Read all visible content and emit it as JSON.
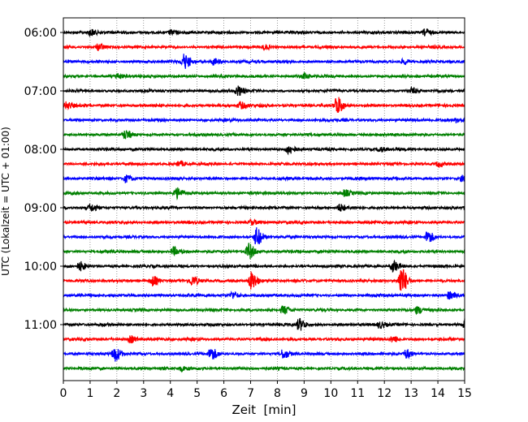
{
  "chart_data": {
    "type": "line",
    "title": "",
    "xlabel": "Zeit  [min]",
    "ylabel": "UTC (Lokalzeit = UTC + 01:00)",
    "xlim": [
      0,
      15
    ],
    "x_ticks": [
      0,
      1,
      2,
      3,
      4,
      5,
      6,
      7,
      8,
      9,
      10,
      11,
      12,
      13,
      14,
      15
    ],
    "x_tick_labels": [
      "0",
      "1",
      "2",
      "3",
      "4",
      "5",
      "6",
      "7",
      "8",
      "9",
      "10",
      "11",
      "12",
      "13",
      "14",
      "15"
    ],
    "y_tick_labels": [
      "06:00",
      "07:00",
      "08:00",
      "09:00",
      "10:00",
      "11:00"
    ],
    "y_tick_traces": [
      0,
      4,
      8,
      12,
      16,
      20
    ],
    "grid": {
      "x": true,
      "y": false,
      "style": "dotted"
    },
    "trace_minutes": 15,
    "colors": [
      "#000000",
      "#ff0000",
      "#0000ff",
      "#008000"
    ],
    "traces": [
      {
        "start": "06:00",
        "color": "#000000",
        "events": [
          [
            1.0,
            4
          ],
          [
            4.0,
            3
          ],
          [
            13.5,
            4
          ]
        ]
      },
      {
        "start": "06:15",
        "color": "#ff0000",
        "events": [
          [
            1.3,
            4
          ],
          [
            7.5,
            3
          ]
        ]
      },
      {
        "start": "06:30",
        "color": "#0000ff",
        "events": [
          [
            4.5,
            9
          ],
          [
            5.6,
            4
          ],
          [
            12.7,
            3
          ]
        ]
      },
      {
        "start": "06:45",
        "color": "#008000",
        "events": [
          [
            2.0,
            3
          ],
          [
            9.0,
            3
          ]
        ]
      },
      {
        "start": "07:00",
        "color": "#000000",
        "events": [
          [
            6.5,
            6
          ],
          [
            13.0,
            3
          ]
        ]
      },
      {
        "start": "07:15",
        "color": "#ff0000",
        "events": [
          [
            0.1,
            4
          ],
          [
            6.6,
            4
          ],
          [
            10.2,
            11
          ]
        ]
      },
      {
        "start": "07:30",
        "color": "#0000ff",
        "events": [
          [
            14.7,
            3
          ]
        ]
      },
      {
        "start": "07:45",
        "color": "#008000",
        "events": [
          [
            2.3,
            5
          ]
        ]
      },
      {
        "start": "08:00",
        "color": "#000000",
        "events": [
          [
            8.4,
            5
          ],
          [
            11.8,
            3
          ]
        ]
      },
      {
        "start": "08:15",
        "color": "#ff0000",
        "events": [
          [
            4.3,
            3
          ],
          [
            14.0,
            3
          ]
        ]
      },
      {
        "start": "08:30",
        "color": "#0000ff",
        "events": [
          [
            2.3,
            4
          ],
          [
            14.9,
            3
          ]
        ]
      },
      {
        "start": "08:45",
        "color": "#008000",
        "events": [
          [
            4.2,
            6
          ],
          [
            10.5,
            4
          ]
        ]
      },
      {
        "start": "09:00",
        "color": "#000000",
        "events": [
          [
            1.0,
            4
          ],
          [
            10.3,
            4
          ]
        ]
      },
      {
        "start": "09:15",
        "color": "#ff0000",
        "events": [
          [
            7.0,
            3
          ]
        ]
      },
      {
        "start": "09:30",
        "color": "#0000ff",
        "events": [
          [
            7.2,
            11
          ],
          [
            13.6,
            7
          ]
        ]
      },
      {
        "start": "09:45",
        "color": "#008000",
        "events": [
          [
            6.9,
            10
          ],
          [
            4.1,
            5
          ]
        ]
      },
      {
        "start": "10:00",
        "color": "#000000",
        "events": [
          [
            0.6,
            5
          ],
          [
            12.3,
            7
          ]
        ]
      },
      {
        "start": "10:15",
        "color": "#ff0000",
        "events": [
          [
            3.3,
            6
          ],
          [
            4.8,
            5
          ],
          [
            7.0,
            11
          ],
          [
            12.6,
            17
          ]
        ]
      },
      {
        "start": "10:30",
        "color": "#0000ff",
        "events": [
          [
            6.3,
            4
          ],
          [
            14.4,
            4
          ]
        ]
      },
      {
        "start": "10:45",
        "color": "#008000",
        "events": [
          [
            8.2,
            5
          ],
          [
            13.2,
            4
          ]
        ]
      },
      {
        "start": "11:00",
        "color": "#000000",
        "events": [
          [
            8.8,
            7
          ],
          [
            15.0,
            6
          ],
          [
            11.8,
            4
          ]
        ]
      },
      {
        "start": "11:15",
        "color": "#ff0000",
        "events": [
          [
            2.5,
            4
          ],
          [
            12.3,
            4
          ]
        ]
      },
      {
        "start": "11:30",
        "color": "#0000ff",
        "events": [
          [
            1.9,
            9
          ],
          [
            5.5,
            7
          ],
          [
            8.2,
            5
          ],
          [
            12.8,
            5
          ]
        ]
      },
      {
        "start": "11:45",
        "color": "#008000",
        "events": [
          [
            4.4,
            3
          ]
        ]
      }
    ]
  }
}
